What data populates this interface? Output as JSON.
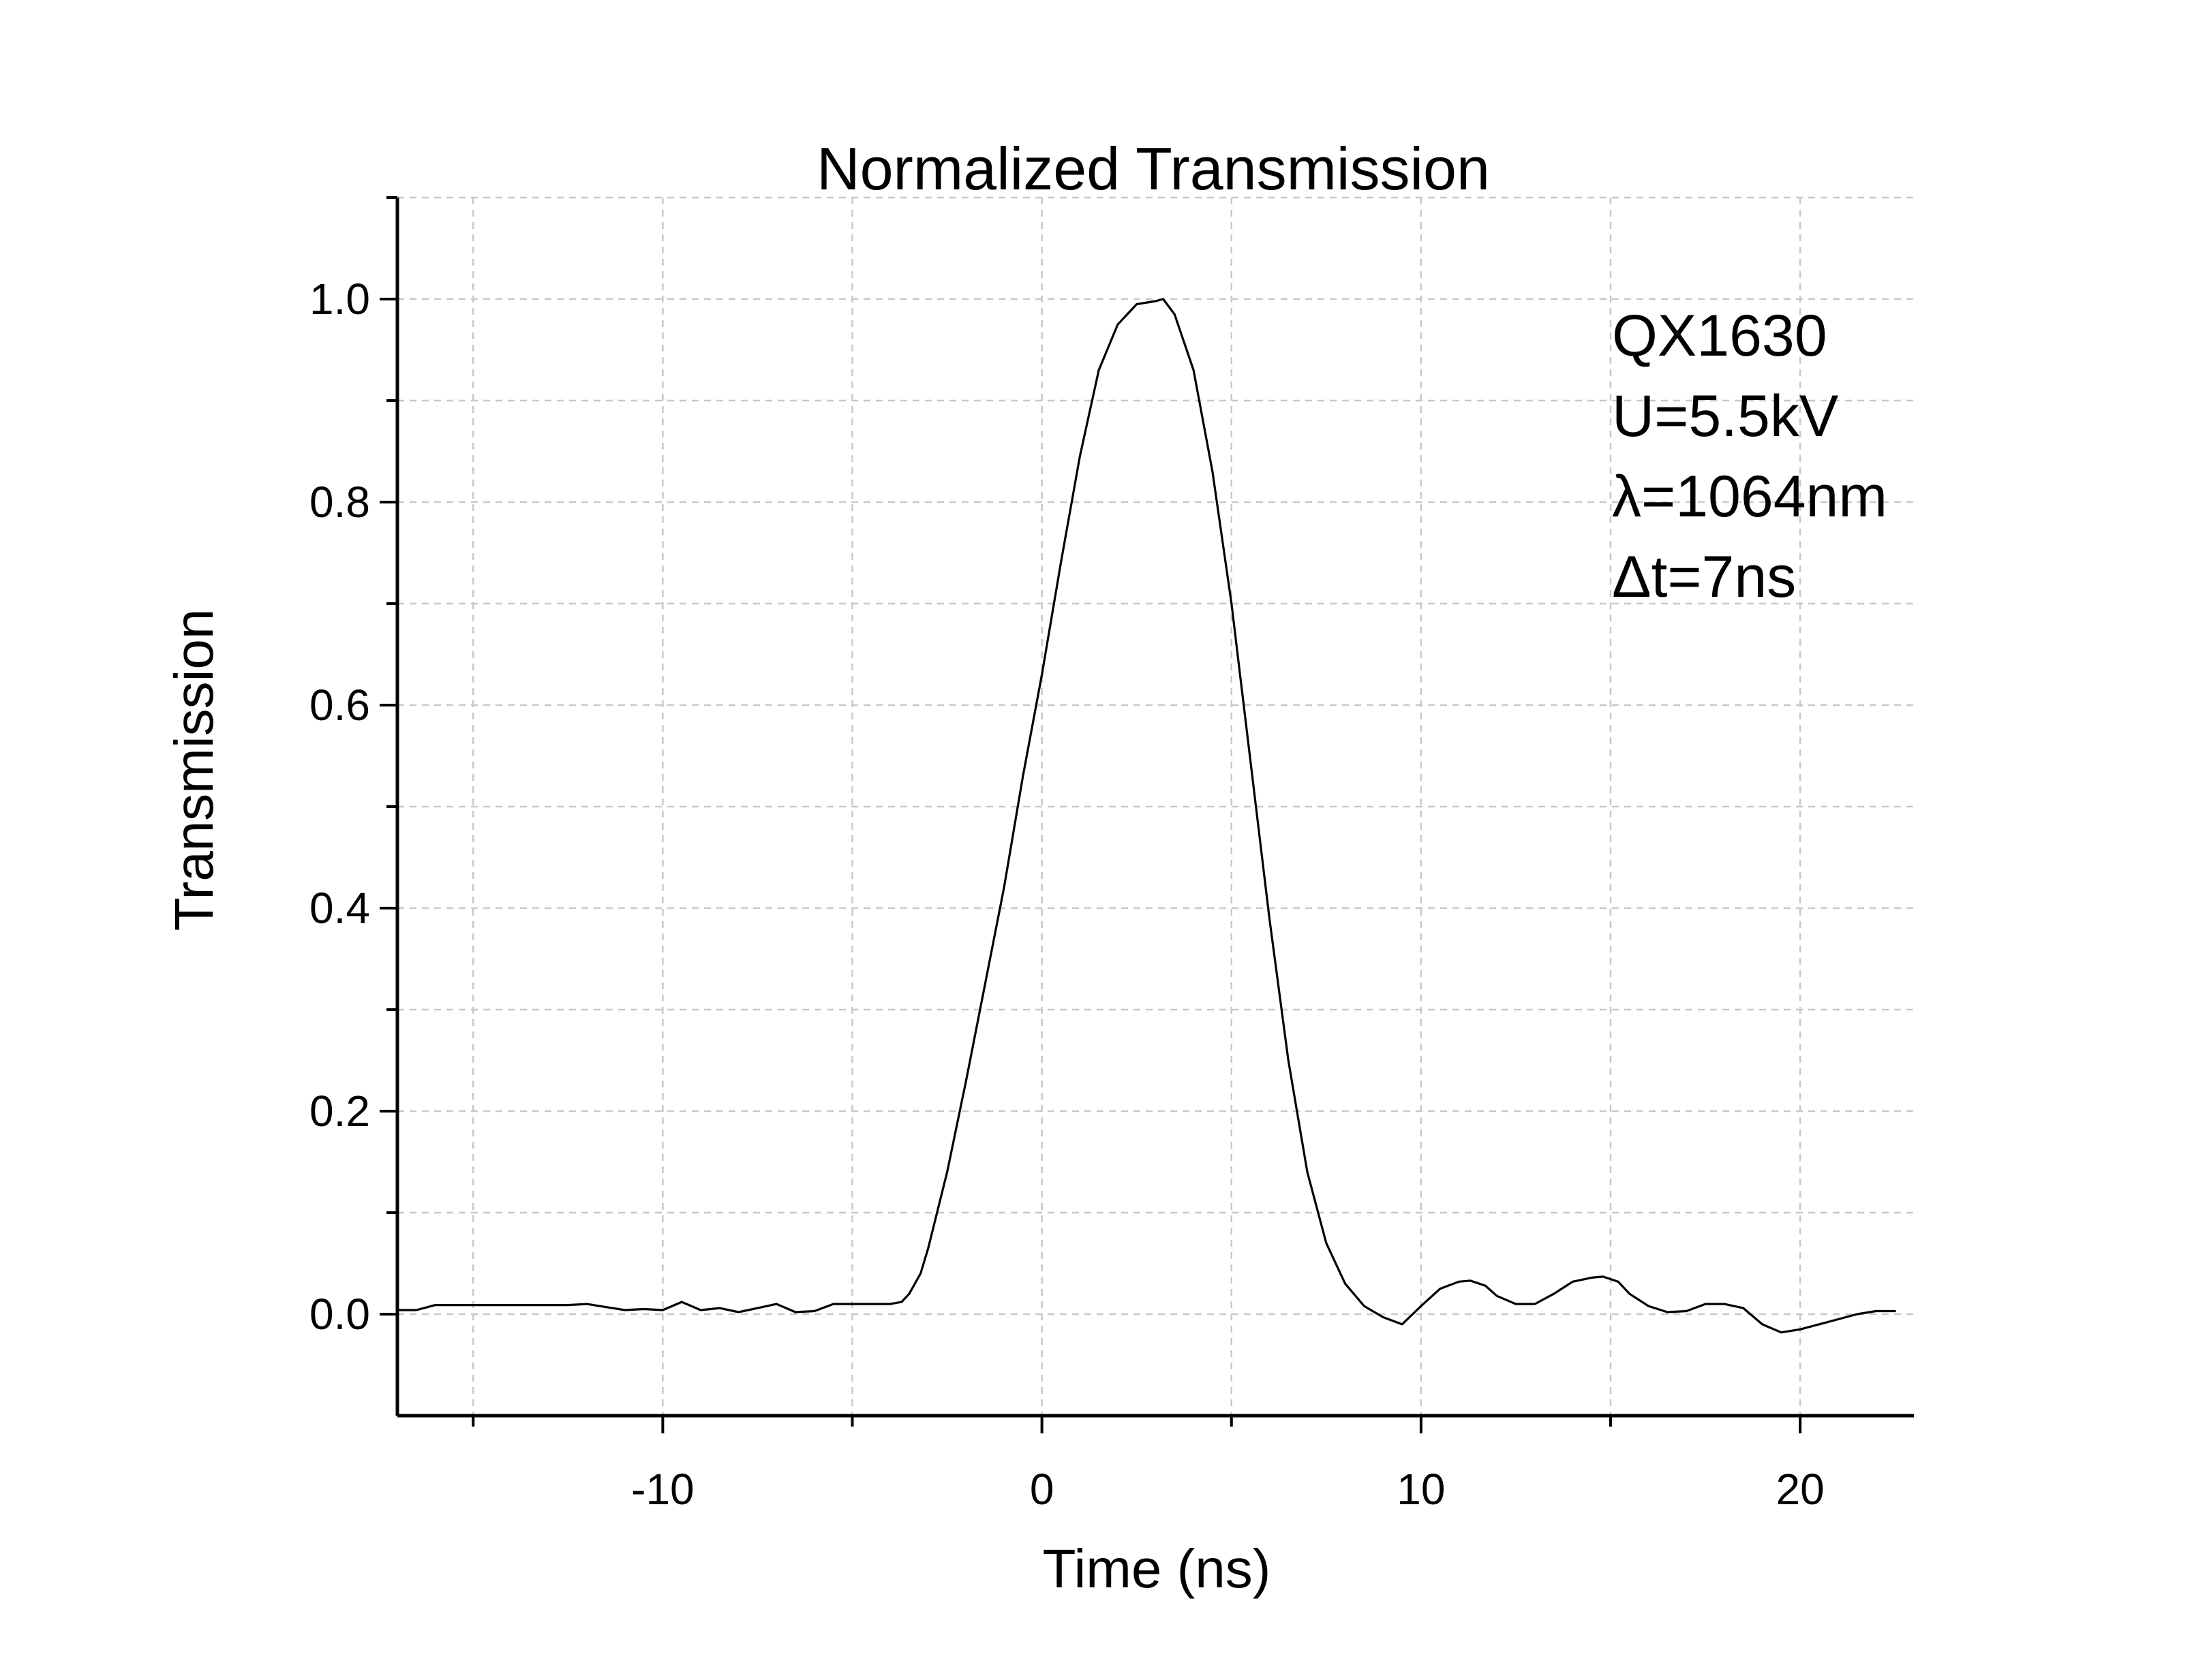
{
  "chart_data": {
    "type": "line",
    "title": "Normalized Transmission",
    "xlabel": "Time (ns)",
    "ylabel": "Transmission",
    "xlim": [
      -17,
      23
    ],
    "ylim": [
      -0.1,
      1.1
    ],
    "grid": true,
    "x_ticks": [
      -10,
      0,
      10,
      20
    ],
    "x_tick_labels": [
      "-10",
      "0",
      "10",
      "20"
    ],
    "y_ticks": [
      0.0,
      0.2,
      0.4,
      0.6,
      0.8,
      1.0
    ],
    "y_tick_labels": [
      "0.0",
      "0.2",
      "0.4",
      "0.6",
      "0.8",
      "1.0"
    ],
    "annotations": [
      "QX1630",
      "U=5.5kV",
      "λ=1064nm",
      "Δt=7ns"
    ],
    "series": [
      {
        "color": "#000000",
        "x": [
          -17,
          -16.5,
          -16,
          -15,
          -14,
          -13,
          -12.5,
          -12,
          -11,
          -10.5,
          -10,
          -9.5,
          -9,
          -8.5,
          -8,
          -7.5,
          -7,
          -6.5,
          -6,
          -5.5,
          -5,
          -4.5,
          -4,
          -3.7,
          -3.5,
          -3.2,
          -3.0,
          -2.5,
          -2.0,
          -1.5,
          -1.0,
          -0.5,
          0.0,
          0.5,
          1.0,
          1.5,
          2.0,
          2.5,
          3.0,
          3.2,
          3.5,
          4.0,
          4.5,
          5.0,
          5.5,
          6.0,
          6.5,
          7.0,
          7.5,
          8.0,
          8.5,
          9.0,
          9.5,
          10.0,
          10.5,
          11.0,
          11.3,
          11.7,
          12.0,
          12.5,
          13.0,
          13.5,
          14.0,
          14.5,
          14.8,
          15.2,
          15.5,
          16.0,
          16.5,
          17.0,
          17.5,
          18.0,
          18.5,
          19.0,
          19.5,
          20.0,
          20.5,
          21.0,
          21.5,
          22.0,
          22.5
        ],
        "y": [
          0.004,
          0.004,
          0.009,
          0.009,
          0.009,
          0.009,
          0.009,
          0.01,
          0.004,
          0.005,
          0.004,
          0.012,
          0.004,
          0.006,
          0.002,
          0.006,
          0.01,
          0.002,
          0.003,
          0.01,
          0.01,
          0.01,
          0.01,
          0.012,
          0.02,
          0.04,
          0.065,
          0.14,
          0.23,
          0.325,
          0.42,
          0.53,
          0.63,
          0.74,
          0.845,
          0.93,
          0.975,
          0.995,
          0.998,
          1.0,
          0.985,
          0.93,
          0.83,
          0.7,
          0.545,
          0.39,
          0.25,
          0.14,
          0.07,
          0.03,
          0.008,
          -0.003,
          -0.01,
          0.008,
          0.025,
          0.032,
          0.033,
          0.028,
          0.018,
          0.01,
          0.01,
          0.02,
          0.032,
          0.036,
          0.037,
          0.032,
          0.02,
          0.008,
          0.002,
          0.003,
          0.01,
          0.01,
          0.006,
          -0.01,
          -0.018,
          -0.015,
          -0.01,
          -0.005,
          0.0,
          0.003,
          0.003
        ]
      }
    ]
  }
}
